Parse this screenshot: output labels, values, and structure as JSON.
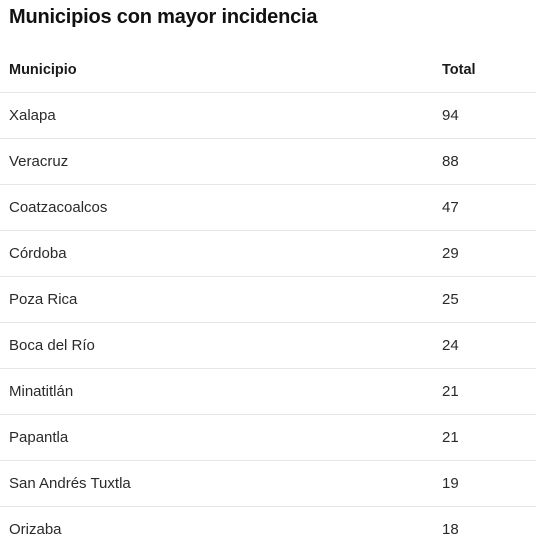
{
  "title": "Municipios con mayor incidencia",
  "columns": {
    "municipio": "Municipio",
    "total": "Total"
  },
  "rows": [
    {
      "municipio": "Xalapa",
      "total": "94"
    },
    {
      "municipio": "Veracruz",
      "total": "88"
    },
    {
      "municipio": "Coatzacoalcos",
      "total": "47"
    },
    {
      "municipio": "Córdoba",
      "total": "29"
    },
    {
      "municipio": "Poza Rica",
      "total": "25"
    },
    {
      "municipio": "Boca del Río",
      "total": "24"
    },
    {
      "municipio": "Minatitlán",
      "total": "21"
    },
    {
      "municipio": "Papantla",
      "total": "21"
    },
    {
      "municipio": "San Andrés Tuxtla",
      "total": "19"
    },
    {
      "municipio": "Orizaba",
      "total": "18"
    }
  ]
}
